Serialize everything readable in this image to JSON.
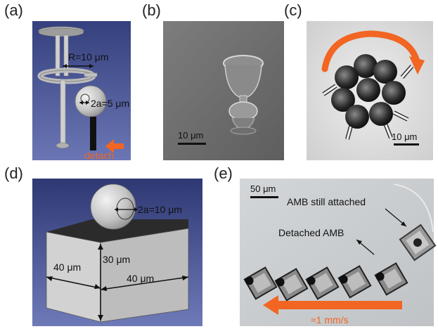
{
  "panels": [
    {
      "label": "(a)"
    },
    {
      "label": "(b)"
    },
    {
      "label": "(c)"
    },
    {
      "label": "(d)"
    },
    {
      "label": "(e)"
    }
  ],
  "a": {
    "radius_label": "R=10 μm",
    "diameter_label": "2a=5 μm",
    "detach_label": "detach"
  },
  "b": {
    "scale_label": "10 μm"
  },
  "c": {
    "scale_label": "10 μm"
  },
  "d": {
    "sphere_label": "2a=10 μm",
    "height_label": "30 μm",
    "left_label": "40 μm",
    "right_label": "40 μm"
  },
  "e": {
    "scale_label": "50 μm",
    "attached_label": "AMB still attached",
    "detached_label": "Detached AMB",
    "speed_label": "≈1 mm/s"
  },
  "colors": {
    "accent": "#f26522",
    "panel_blue": "#3f4a8c",
    "gray_bg": "#9e9e9e"
  }
}
